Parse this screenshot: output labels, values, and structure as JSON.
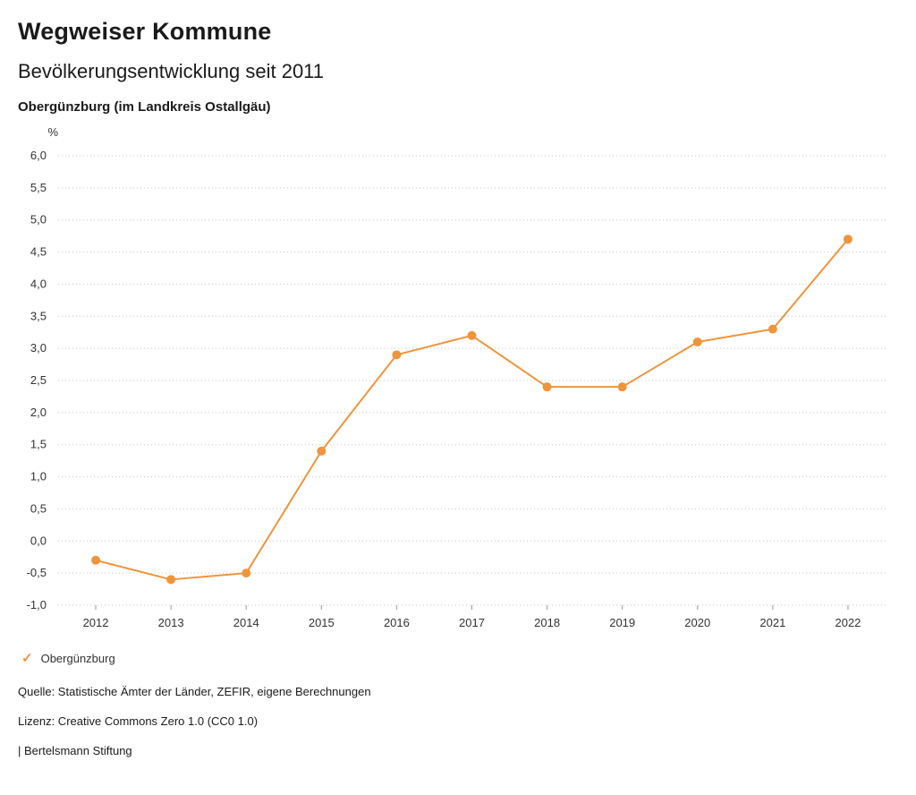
{
  "header": {
    "brand": "Wegweiser Kommune",
    "title": "Bevölkerungsentwicklung seit 2011",
    "subtitle": "Obergünzburg (im Landkreis Ostallgäu)"
  },
  "legend": {
    "check_icon": "✓",
    "label": "Obergünzburg"
  },
  "footer": {
    "source": "Quelle: Statistische Ämter der Länder, ZEFIR, eigene Berechnungen",
    "license": "Lizenz: Creative Commons Zero 1.0 (CC0 1.0)",
    "attribution": "| Bertelsmann Stiftung"
  },
  "colors": {
    "accent": "#F0943C",
    "grid": "#c4c4c4",
    "tick": "#999999",
    "axis_text": "#333333"
  },
  "chart_data": {
    "type": "line",
    "title": "Bevölkerungsentwicklung seit 2011",
    "subtitle": "Obergünzburg (im Landkreis Ostallgäu)",
    "categories": [
      "2012",
      "2013",
      "2014",
      "2015",
      "2016",
      "2017",
      "2018",
      "2019",
      "2020",
      "2021",
      "2022"
    ],
    "series": [
      {
        "name": "Obergünzburg",
        "values": [
          -0.3,
          -0.6,
          -0.5,
          1.4,
          2.9,
          3.2,
          2.4,
          2.4,
          3.1,
          3.3,
          4.7
        ]
      }
    ],
    "xlabel": "",
    "ylabel": "%",
    "ylim": [
      -1.0,
      6.0
    ],
    "ytick_step": 0.5,
    "decimal_separator": ",",
    "grid": true,
    "legend_position": "bottom-left"
  }
}
